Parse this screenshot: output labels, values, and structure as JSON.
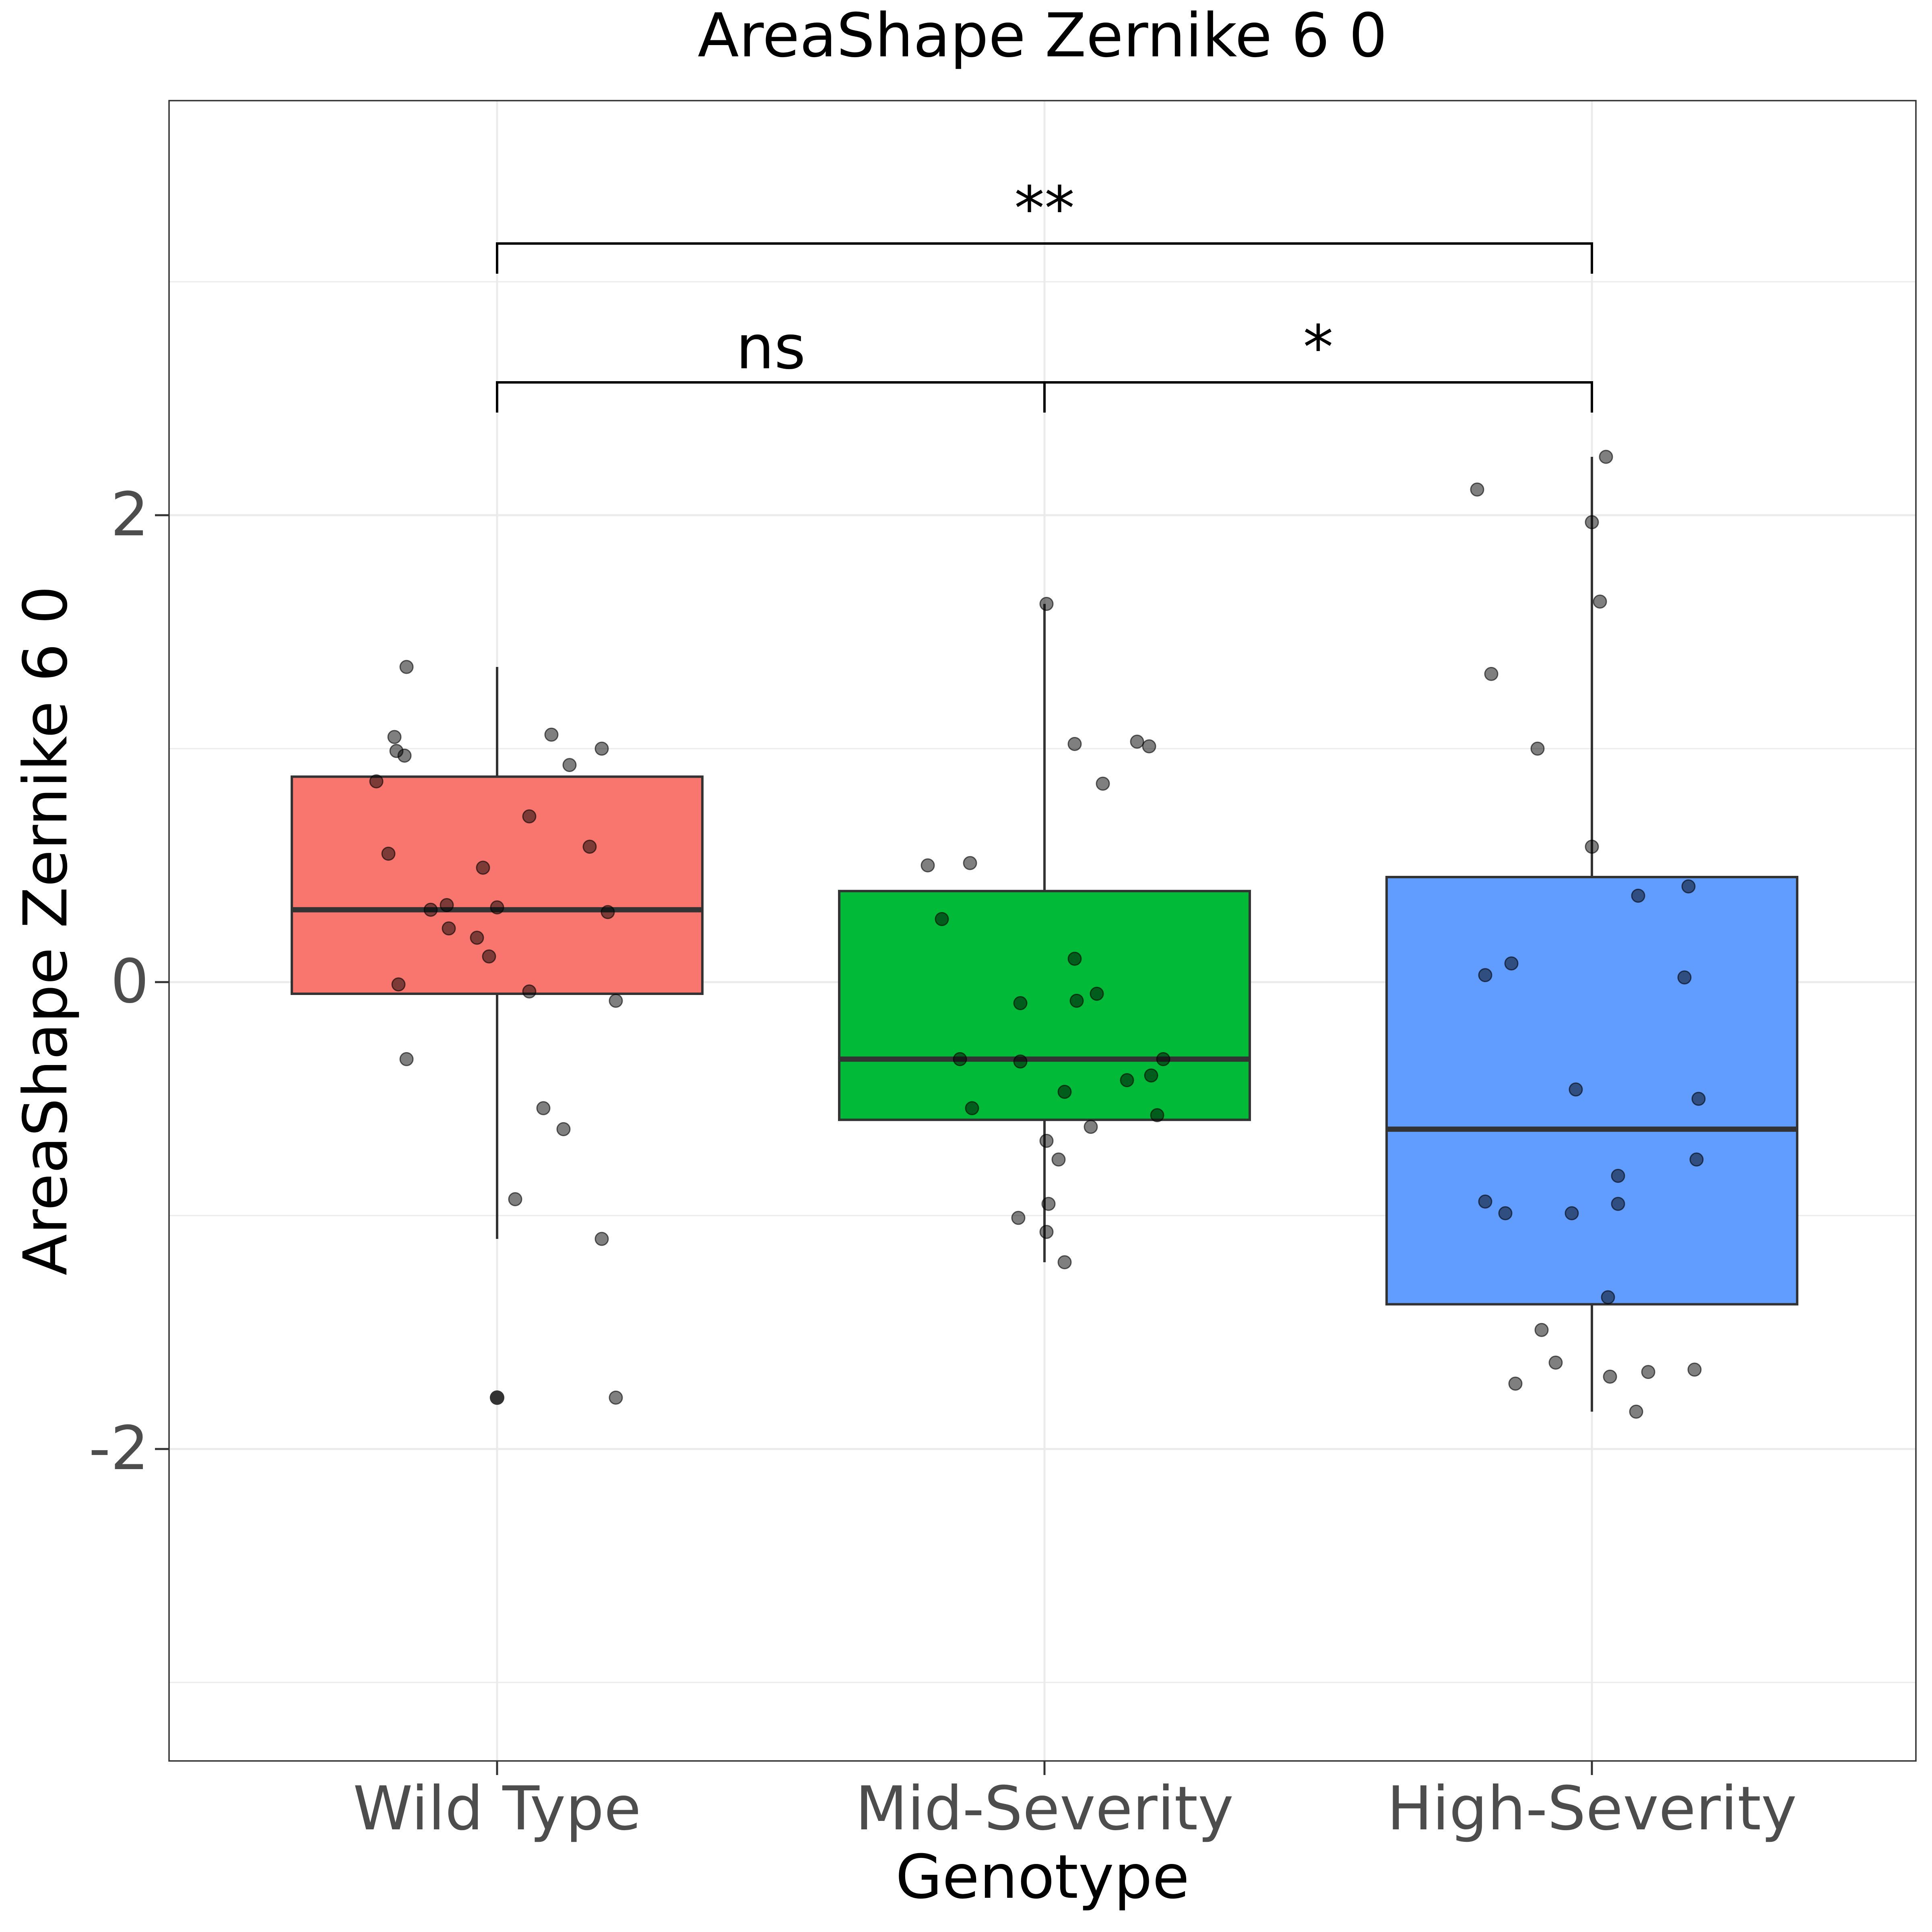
{
  "chart_data": {
    "type": "box",
    "title": "AreaShape Zernike 6 0",
    "xlabel": "Genotype",
    "ylabel": "AreaShape Zernike 6 0",
    "categories": [
      "Wild Type",
      "Mid-Severity",
      "High-Severity"
    ],
    "yticks": [
      "2",
      "0",
      "-2"
    ],
    "ytick_values": [
      2,
      0,
      -2
    ],
    "ylim": [
      -3.35,
      3.55
    ],
    "grid": true,
    "legend": "none",
    "colors": [
      "#F8766D",
      "#00BA38",
      "#619CFF"
    ],
    "series": [
      {
        "category": "Wild Type",
        "box": {
          "q1": -0.05,
          "median": 0.31,
          "q3": 0.88,
          "whisker_low": -1.1,
          "whisker_high": 1.35
        },
        "outliers": [
          -1.78
        ],
        "points": [
          [
            -0.45,
            1.35
          ],
          [
            -0.51,
            1.05
          ],
          [
            -0.5,
            0.99
          ],
          [
            -0.46,
            0.97
          ],
          [
            -0.6,
            0.86
          ],
          [
            -0.54,
            0.55
          ],
          [
            -0.33,
            0.31
          ],
          [
            -0.25,
            0.33
          ],
          [
            -0.24,
            0.23
          ],
          [
            -0.1,
            0.19
          ],
          [
            -0.07,
            0.49
          ],
          [
            0.0,
            0.32
          ],
          [
            -0.04,
            0.11
          ],
          [
            0.16,
            0.71
          ],
          [
            0.27,
            1.06
          ],
          [
            0.36,
            0.93
          ],
          [
            0.52,
            1.0
          ],
          [
            0.46,
            0.58
          ],
          [
            0.55,
            0.3
          ],
          [
            -0.49,
            -0.01
          ],
          [
            -0.45,
            -0.33
          ],
          [
            0.16,
            -0.04
          ],
          [
            0.59,
            -0.08
          ],
          [
            0.23,
            -0.54
          ],
          [
            0.33,
            -0.63
          ],
          [
            0.09,
            -0.93
          ],
          [
            0.52,
            -1.1
          ],
          [
            0.59,
            -1.78
          ]
        ]
      },
      {
        "category": "Mid-Severity",
        "box": {
          "q1": -0.59,
          "median": -0.33,
          "q3": 0.39,
          "whisker_low": -1.2,
          "whisker_high": 1.62
        },
        "outliers": [],
        "points": [
          [
            0.01,
            1.62
          ],
          [
            0.15,
            1.02
          ],
          [
            0.29,
            0.85
          ],
          [
            0.46,
            1.03
          ],
          [
            0.52,
            1.01
          ],
          [
            -0.58,
            0.5
          ],
          [
            -0.37,
            0.51
          ],
          [
            -0.51,
            0.27
          ],
          [
            0.15,
            0.1
          ],
          [
            -0.12,
            -0.09
          ],
          [
            0.16,
            -0.08
          ],
          [
            0.26,
            -0.05
          ],
          [
            -0.42,
            -0.33
          ],
          [
            -0.12,
            -0.34
          ],
          [
            0.1,
            -0.47
          ],
          [
            0.41,
            -0.42
          ],
          [
            0.53,
            -0.4
          ],
          [
            0.59,
            -0.33
          ],
          [
            -0.36,
            -0.54
          ],
          [
            0.56,
            -0.57
          ],
          [
            0.23,
            -0.62
          ],
          [
            0.01,
            -0.68
          ],
          [
            0.07,
            -0.76
          ],
          [
            0.02,
            -0.95
          ],
          [
            -0.13,
            -1.01
          ],
          [
            0.01,
            -1.07
          ],
          [
            0.1,
            -1.2
          ]
        ]
      },
      {
        "category": "High-Severity",
        "box": {
          "q1": -1.38,
          "median": -0.63,
          "q3": 0.45,
          "whisker_low": -1.84,
          "whisker_high": 2.25
        },
        "outliers": [],
        "points": [
          [
            0.07,
            2.25
          ],
          [
            -0.57,
            2.11
          ],
          [
            0.0,
            1.97
          ],
          [
            0.04,
            1.63
          ],
          [
            -0.5,
            1.32
          ],
          [
            -0.27,
            1.0
          ],
          [
            0.0,
            0.58
          ],
          [
            0.23,
            0.37
          ],
          [
            0.48,
            0.41
          ],
          [
            -0.53,
            0.03
          ],
          [
            -0.4,
            0.08
          ],
          [
            0.46,
            0.02
          ],
          [
            -0.08,
            -0.46
          ],
          [
            0.53,
            -0.5
          ],
          [
            0.52,
            -0.76
          ],
          [
            0.13,
            -0.83
          ],
          [
            -0.53,
            -0.94
          ],
          [
            -0.43,
            -0.99
          ],
          [
            -0.1,
            -0.99
          ],
          [
            0.13,
            -0.95
          ],
          [
            0.08,
            -1.35
          ],
          [
            -0.25,
            -1.49
          ],
          [
            -0.38,
            -1.72
          ],
          [
            -0.18,
            -1.63
          ],
          [
            0.09,
            -1.69
          ],
          [
            0.28,
            -1.67
          ],
          [
            0.51,
            -1.66
          ],
          [
            0.22,
            -1.84
          ]
        ]
      }
    ],
    "annotations": [
      {
        "from": 0,
        "to": 1,
        "label": "ns",
        "level": 1
      },
      {
        "from": 1,
        "to": 2,
        "label": "*",
        "level": 1
      },
      {
        "from": 0,
        "to": 2,
        "label": "**",
        "level": 2
      }
    ]
  }
}
